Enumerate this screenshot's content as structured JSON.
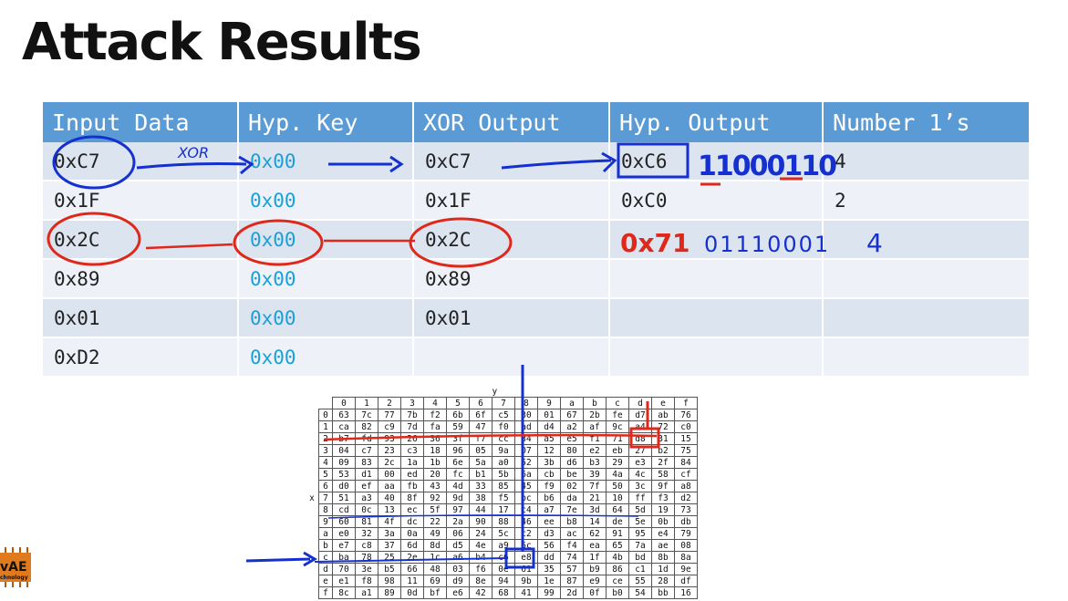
{
  "slide": {
    "title": "Attack Results"
  },
  "table": {
    "headers": [
      "Input Data",
      "Hyp. Key",
      "XOR Output",
      "Hyp. Output",
      "Number 1’s"
    ],
    "rows": [
      [
        "0xC7",
        "0x00",
        "0xC7",
        "0xC6",
        "4"
      ],
      [
        "0x1F",
        "0x00",
        "0x1F",
        "0xC0",
        "2"
      ],
      [
        "0x2C",
        "0x00",
        "0x2C",
        "",
        ""
      ],
      [
        "0x89",
        "0x00",
        "0x89",
        "",
        ""
      ],
      [
        "0x01",
        "0x00",
        "0x01",
        "",
        ""
      ],
      [
        "0xD2",
        "0x00",
        "",
        "",
        ""
      ]
    ]
  },
  "handwriting": {
    "xor_label": "XOR",
    "bits_row1": "11000110",
    "hyp_row3": "0x71",
    "bits_row3": "01110001",
    "count_row3": "4"
  },
  "sbox": {
    "y_label": "y",
    "x_label": "x",
    "col_headers": [
      "0",
      "1",
      "2",
      "3",
      "4",
      "5",
      "6",
      "7",
      "8",
      "9",
      "a",
      "b",
      "c",
      "d",
      "e",
      "f"
    ],
    "row_headers": [
      "0",
      "1",
      "2",
      "3",
      "4",
      "5",
      "6",
      "7",
      "8",
      "9",
      "a",
      "b",
      "c",
      "d",
      "e",
      "f"
    ],
    "rows": [
      [
        "63",
        "7c",
        "77",
        "7b",
        "f2",
        "6b",
        "6f",
        "c5",
        "30",
        "01",
        "67",
        "2b",
        "fe",
        "d7",
        "ab",
        "76"
      ],
      [
        "ca",
        "82",
        "c9",
        "7d",
        "fa",
        "59",
        "47",
        "f0",
        "ad",
        "d4",
        "a2",
        "af",
        "9c",
        "a4",
        "72",
        "c0"
      ],
      [
        "b7",
        "fd",
        "93",
        "26",
        "36",
        "3f",
        "f7",
        "cc",
        "34",
        "a5",
        "e5",
        "f1",
        "71",
        "d8",
        "31",
        "15"
      ],
      [
        "04",
        "c7",
        "23",
        "c3",
        "18",
        "96",
        "05",
        "9a",
        "07",
        "12",
        "80",
        "e2",
        "eb",
        "27",
        "b2",
        "75"
      ],
      [
        "09",
        "83",
        "2c",
        "1a",
        "1b",
        "6e",
        "5a",
        "a0",
        "52",
        "3b",
        "d6",
        "b3",
        "29",
        "e3",
        "2f",
        "84"
      ],
      [
        "53",
        "d1",
        "00",
        "ed",
        "20",
        "fc",
        "b1",
        "5b",
        "6a",
        "cb",
        "be",
        "39",
        "4a",
        "4c",
        "58",
        "cf"
      ],
      [
        "d0",
        "ef",
        "aa",
        "fb",
        "43",
        "4d",
        "33",
        "85",
        "45",
        "f9",
        "02",
        "7f",
        "50",
        "3c",
        "9f",
        "a8"
      ],
      [
        "51",
        "a3",
        "40",
        "8f",
        "92",
        "9d",
        "38",
        "f5",
        "bc",
        "b6",
        "da",
        "21",
        "10",
        "ff",
        "f3",
        "d2"
      ],
      [
        "cd",
        "0c",
        "13",
        "ec",
        "5f",
        "97",
        "44",
        "17",
        "c4",
        "a7",
        "7e",
        "3d",
        "64",
        "5d",
        "19",
        "73"
      ],
      [
        "60",
        "81",
        "4f",
        "dc",
        "22",
        "2a",
        "90",
        "88",
        "46",
        "ee",
        "b8",
        "14",
        "de",
        "5e",
        "0b",
        "db"
      ],
      [
        "e0",
        "32",
        "3a",
        "0a",
        "49",
        "06",
        "24",
        "5c",
        "c2",
        "d3",
        "ac",
        "62",
        "91",
        "95",
        "e4",
        "79"
      ],
      [
        "e7",
        "c8",
        "37",
        "6d",
        "8d",
        "d5",
        "4e",
        "a9",
        "6c",
        "56",
        "f4",
        "ea",
        "65",
        "7a",
        "ae",
        "08"
      ],
      [
        "ba",
        "78",
        "25",
        "2e",
        "1c",
        "a6",
        "b4",
        "c6",
        "e8",
        "dd",
        "74",
        "1f",
        "4b",
        "bd",
        "8b",
        "8a"
      ],
      [
        "70",
        "3e",
        "b5",
        "66",
        "48",
        "03",
        "f6",
        "0e",
        "61",
        "35",
        "57",
        "b9",
        "86",
        "c1",
        "1d",
        "9e"
      ],
      [
        "e1",
        "f8",
        "98",
        "11",
        "69",
        "d9",
        "8e",
        "94",
        "9b",
        "1e",
        "87",
        "e9",
        "ce",
        "55",
        "28",
        "df"
      ],
      [
        "8c",
        "a1",
        "89",
        "0d",
        "bf",
        "e6",
        "42",
        "68",
        "41",
        "99",
        "2d",
        "0f",
        "b0",
        "54",
        "bb",
        "16"
      ]
    ]
  },
  "logo": {
    "text_main": "vAE",
    "text_sub": "chnology",
    "color": "#e07a1f"
  },
  "colors": {
    "header_bg": "#5b9bd5",
    "row_odd": "#dbe4ef",
    "row_even": "#eef2f8",
    "key_text": "#1aa0d8",
    "ink_blue": "#1530d0",
    "ink_red": "#e0281a"
  }
}
